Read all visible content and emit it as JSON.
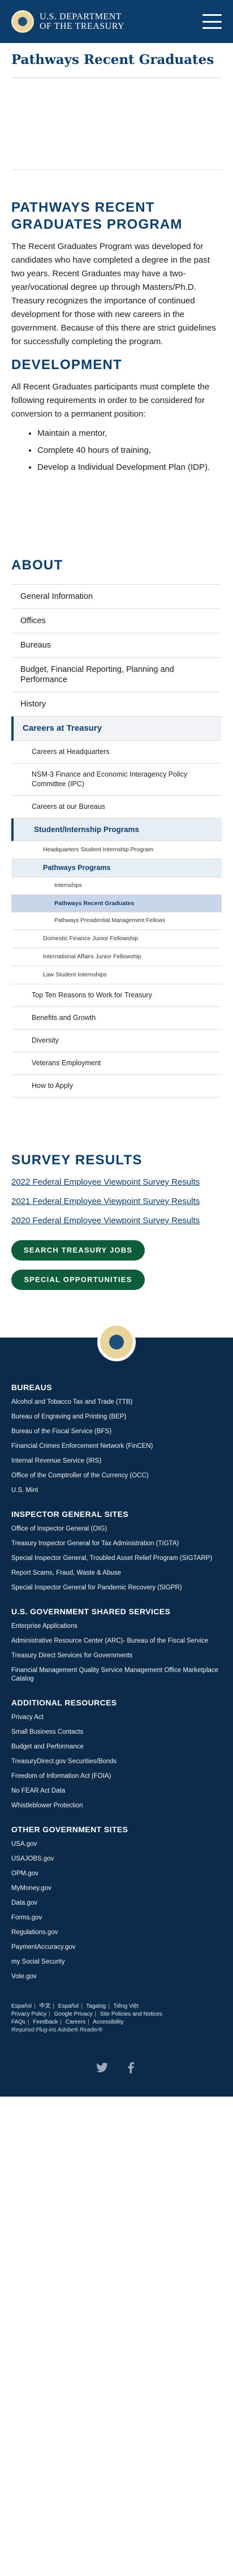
{
  "header": {
    "brand_line1": "U.S. DEPARTMENT",
    "brand_line2": "OF THE TREASURY",
    "page_title": "Pathways Recent Graduates"
  },
  "program": {
    "heading": "PATHWAYS RECENT GRADUATES PROGRAM",
    "body": "The Recent Graduates Program was developed for candidates who have completed a degree in the past two years. Recent Graduates may have a two-year/vocational degree up through Masters/Ph.D. Treasury recognizes the importance of continued development for those with new careers in the government. Because of this there are strict guidelines for successfully completing the program."
  },
  "development": {
    "heading": "DEVELOPMENT",
    "body": "All Recent Graduates participants must complete the following requirements in order to be considered for conversion to a permanent position:",
    "requirements": [
      "Maintain a mentor,",
      "Complete 40 hours of training,",
      "Develop a Individual Development Plan (IDP)."
    ]
  },
  "about": {
    "heading": "ABOUT",
    "nav": {
      "general": "General Information",
      "offices": "Offices",
      "bureaus": "Bureaus",
      "budget": "Budget, Financial Reporting, Planning and Performance",
      "history": "History",
      "careers": "Careers at Treasury",
      "careers_hq": "Careers at Headquarters",
      "nsm": "NSM-3 Finance and Economic Interagency Policy Committee (IPC)",
      "careers_bureaus": "Careers at our Bureaus",
      "student": "Student/Internship Programs",
      "hq_student": "Headquarters Student Internship Program",
      "pathways": "Pathways Programs",
      "internships": "Internships",
      "recent_grads": "Pathways Recent Graduates",
      "pmf": "Pathways Presidential Management Fellows",
      "domestic": "Domestic Finance Junior Fellowship",
      "international": "International Affairs Junior Fellowship",
      "law": "Law Student Internships",
      "top_ten": "Top Ten Reasons to Work for Treasury",
      "benefits": "Benefits and Growth",
      "diversity": "Diversity",
      "veterans": "Veterans Employment",
      "apply": "How to Apply"
    }
  },
  "survey": {
    "heading": "SURVEY RESULTS",
    "links": [
      "2022 Federal Employee Viewpoint Survey Results",
      "2021 Federal Employee Viewpoint Survey Results",
      "2020 Federal Employee Viewpoint Survey Results"
    ]
  },
  "buttons": {
    "search_jobs": "SEARCH TREASURY JOBS",
    "special": "SPECIAL OPPORTUNITIES"
  },
  "footer": {
    "bureaus_heading": "BUREAUS",
    "bureaus": [
      "Alcohol and Tobacco Tax and Trade (TTB)",
      "Bureau of Engraving and Printing (BEP)",
      "Bureau of the Fiscal Service (BFS)",
      "Financial Crimes Enforcement Network (FinCEN)",
      "Internal Revenue Service (IRS)",
      "Office of the Comptroller of the Currency (OCC)",
      "U.S. Mint"
    ],
    "ig_heading": "INSPECTOR GENERAL SITES",
    "ig": [
      "Office of Inspector General (OIG)",
      "Treasury Inspector General for Tax Administration (TIGTA)",
      "Special Inspector General, Troubled Asset Relief Program (SIGTARP)",
      "Report Scams, Fraud, Waste & Abuse",
      "Special Inspector General for Pandemic Recovery (SIGPR)"
    ],
    "shared_heading": "U.S. GOVERNMENT SHARED SERVICES",
    "shared": [
      "Enterprise Applications",
      "Administrative Resource Center (ARC)- Bureau of the Fiscal Service",
      "Treasury Direct Services for Governments",
      "Financial Management Quality Service Management Office Marketplace Catalog"
    ],
    "additional_heading": "ADDITIONAL RESOURCES",
    "additional": [
      "Privacy Act",
      "Small Business Contacts",
      "Budget and Performance",
      "TreasuryDirect.gov Securities/Bonds",
      "Freedom of Information Act (FOIA)",
      "No FEAR Act Data",
      "Whistleblower Protection"
    ],
    "other_heading": "OTHER GOVERNMENT SITES",
    "other": [
      "USA.gov",
      "USAJOBS.gov",
      "OPM.gov",
      "MyMoney.gov",
      "Data.gov",
      "Forms.gov",
      "Regulations.gov",
      "PaymentAccuracy.gov",
      "my Social Security",
      "Vote.gov"
    ],
    "languages": [
      "Español",
      "中文",
      "Español",
      "Tagalog",
      "Tiếng Việt"
    ],
    "legal_row1": [
      "Privacy Policy",
      "Google Privacy",
      "Site Policies and Notices"
    ],
    "legal_row2": [
      "FAQs",
      "Feedback",
      "Careers",
      "Accessibility"
    ],
    "plugins": "Required Plug-ins  Adobe® Reader®"
  },
  "icons": {
    "menu": "hamburger-menu-icon",
    "twitter": "twitter-icon",
    "facebook": "facebook-icon"
  }
}
